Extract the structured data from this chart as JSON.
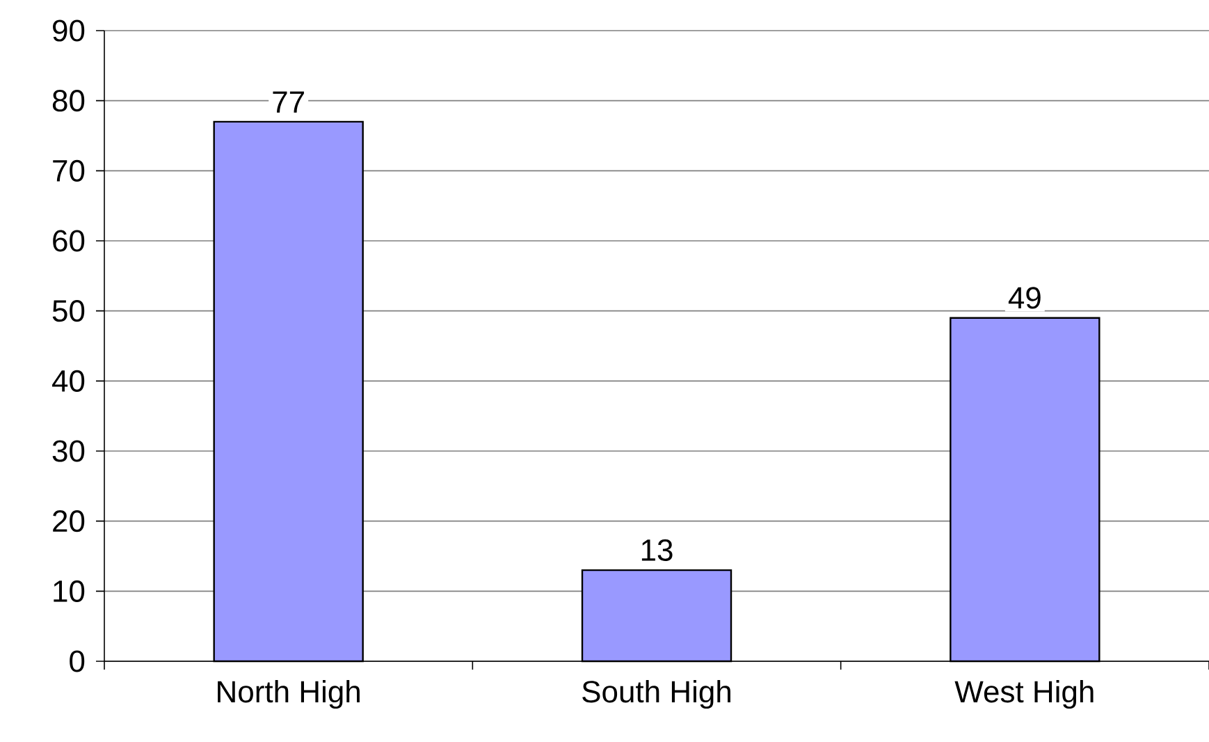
{
  "chart_data": {
    "type": "bar",
    "categories": [
      "North High",
      "South High",
      "West High"
    ],
    "values": [
      77,
      13,
      49
    ],
    "color": "#9999ff",
    "ylim": [
      0,
      90
    ],
    "yticks": [
      0,
      10,
      20,
      30,
      40,
      50,
      60,
      70,
      80,
      90
    ],
    "grid": "y",
    "data_labels": true
  }
}
